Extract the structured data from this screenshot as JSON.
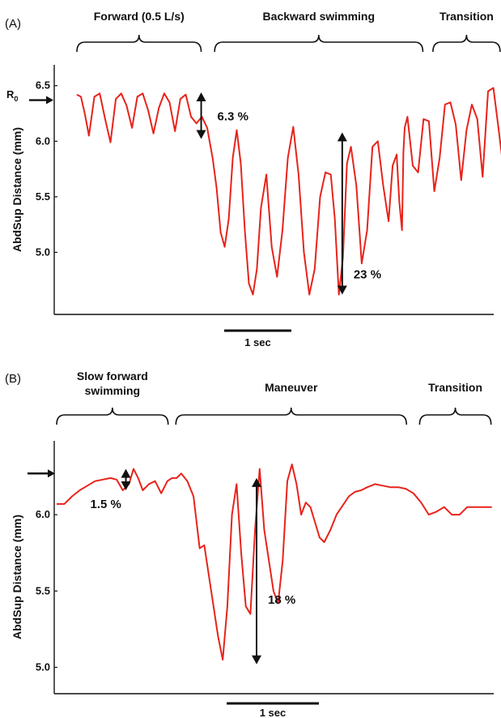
{
  "chart_data": [
    {
      "type": "line",
      "panel_label": "(A)",
      "ylabel": "AbdSup Distance (mm)",
      "yticks": [
        "6.5",
        "6.0",
        "5.5",
        "5.0"
      ],
      "ylim": [
        4.5,
        6.6
      ],
      "r0_label": "R",
      "r0_sub": "0",
      "r0_value": 6.37,
      "phases": [
        {
          "label": "Forward (0.5 L/s)",
          "start": 0.0,
          "end": 1.85
        },
        {
          "label": "Backward swimming",
          "start": 2.05,
          "end": 5.15
        },
        {
          "label": "Transition",
          "start": 5.3,
          "end": 6.3
        }
      ],
      "annotations": [
        {
          "text": "6.3 %",
          "x": 1.85,
          "y_top": 6.44,
          "y_bottom": 6.02
        },
        {
          "text": "23 %",
          "x": 3.95,
          "y_top": 6.08,
          "y_bottom": 4.62
        }
      ],
      "scalebar": {
        "label": "1 sec",
        "length": 1.0
      },
      "series": [
        {
          "color": "#e8231b",
          "x": [
            0.0,
            0.06,
            0.12,
            0.18,
            0.26,
            0.34,
            0.42,
            0.5,
            0.58,
            0.66,
            0.74,
            0.82,
            0.9,
            0.98,
            1.06,
            1.14,
            1.22,
            1.3,
            1.38,
            1.46,
            1.54,
            1.62,
            1.7,
            1.78,
            1.86,
            1.94,
            2.02,
            2.08,
            2.14,
            2.2,
            2.26,
            2.32,
            2.38,
            2.44,
            2.5,
            2.56,
            2.62,
            2.68,
            2.74,
            2.82,
            2.9,
            2.98,
            3.06,
            3.14,
            3.22,
            3.3,
            3.38,
            3.46,
            3.54,
            3.62,
            3.7,
            3.78,
            3.84,
            3.9,
            3.96,
            4.02,
            4.08,
            4.16,
            4.24,
            4.32,
            4.4,
            4.48,
            4.56,
            4.64,
            4.7,
            4.76,
            4.8,
            4.84,
            4.86,
            4.88,
            4.92,
            5.0,
            5.08,
            5.16,
            5.24,
            5.32,
            5.4,
            5.48,
            5.56,
            5.64,
            5.72,
            5.8,
            5.88,
            5.96,
            6.04,
            6.12,
            6.2,
            6.28,
            6.34
          ],
          "y": [
            6.42,
            6.4,
            6.24,
            6.05,
            6.4,
            6.43,
            6.2,
            5.99,
            6.38,
            6.43,
            6.32,
            6.12,
            6.4,
            6.43,
            6.28,
            6.07,
            6.3,
            6.43,
            6.35,
            6.09,
            6.38,
            6.42,
            6.22,
            6.16,
            6.22,
            6.12,
            5.85,
            5.58,
            5.18,
            5.05,
            5.3,
            5.85,
            6.1,
            5.8,
            5.2,
            4.72,
            4.62,
            4.85,
            5.4,
            5.7,
            5.05,
            4.78,
            5.2,
            5.85,
            6.13,
            5.7,
            5.0,
            4.62,
            4.85,
            5.5,
            5.72,
            5.7,
            5.3,
            4.62,
            4.95,
            5.8,
            5.95,
            5.6,
            4.9,
            5.2,
            5.95,
            6.0,
            5.6,
            5.28,
            5.78,
            5.88,
            5.45,
            5.2,
            5.9,
            6.12,
            6.22,
            5.78,
            5.72,
            6.2,
            6.18,
            5.55,
            5.85,
            6.33,
            6.35,
            6.15,
            5.65,
            6.1,
            6.33,
            6.2,
            5.68,
            6.45,
            6.48,
            6.1,
            5.8
          ]
        }
      ]
    },
    {
      "type": "line",
      "panel_label": "(B)",
      "ylabel": "AbdSup Distance (mm)",
      "yticks": [
        "6.0",
        "5.5",
        "5.0"
      ],
      "ylim": [
        4.87,
        6.42
      ],
      "r0_value": 6.27,
      "phases": [
        {
          "label": "Slow forward swimming",
          "start": 0.0,
          "end": 1.45
        },
        {
          "label": "Maneuver",
          "start": 1.55,
          "end": 4.55
        },
        {
          "label": "Transition",
          "start": 4.72,
          "end": 5.65
        }
      ],
      "annotations": [
        {
          "text": "1.5 %",
          "x": 0.9,
          "y_top": 6.3,
          "y_bottom": 6.16
        },
        {
          "text": "18 %",
          "x": 2.6,
          "y_top": 6.24,
          "y_bottom": 5.02
        }
      ],
      "scalebar": {
        "label": "1 sec",
        "length": 1.0
      },
      "series": [
        {
          "color": "#e8231b",
          "x": [
            0.0,
            0.1,
            0.2,
            0.3,
            0.4,
            0.5,
            0.6,
            0.7,
            0.78,
            0.86,
            0.94,
            1.0,
            1.06,
            1.12,
            1.2,
            1.28,
            1.36,
            1.44,
            1.5,
            1.56,
            1.62,
            1.7,
            1.78,
            1.86,
            1.92,
            1.98,
            2.04,
            2.1,
            2.16,
            2.22,
            2.28,
            2.34,
            2.4,
            2.46,
            2.52,
            2.58,
            2.64,
            2.7,
            2.76,
            2.82,
            2.88,
            2.94,
            3.0,
            3.06,
            3.12,
            3.18,
            3.24,
            3.3,
            3.36,
            3.42,
            3.48,
            3.56,
            3.64,
            3.72,
            3.8,
            3.88,
            3.96,
            4.04,
            4.14,
            4.24,
            4.34,
            4.44,
            4.54,
            4.64,
            4.74,
            4.84,
            4.94,
            5.04,
            5.14,
            5.24,
            5.34,
            5.44,
            5.5,
            5.56,
            5.62,
            5.66
          ],
          "y": [
            6.07,
            6.07,
            6.12,
            6.16,
            6.19,
            6.22,
            6.23,
            6.24,
            6.23,
            6.16,
            6.2,
            6.3,
            6.24,
            6.16,
            6.2,
            6.22,
            6.14,
            6.22,
            6.24,
            6.24,
            6.27,
            6.22,
            6.12,
            5.78,
            5.8,
            5.6,
            5.4,
            5.2,
            5.05,
            5.4,
            6.0,
            6.2,
            5.75,
            5.4,
            5.35,
            5.9,
            6.3,
            5.9,
            5.7,
            5.5,
            5.42,
            5.7,
            6.22,
            6.33,
            6.2,
            6.0,
            6.08,
            6.05,
            5.95,
            5.85,
            5.82,
            5.9,
            6.0,
            6.06,
            6.12,
            6.15,
            6.16,
            6.18,
            6.2,
            6.19,
            6.18,
            6.18,
            6.17,
            6.14,
            6.08,
            6.0,
            6.02,
            6.05,
            6.0,
            6.0,
            6.05,
            6.05,
            6.05,
            6.05,
            6.05,
            6.05
          ]
        }
      ]
    }
  ]
}
